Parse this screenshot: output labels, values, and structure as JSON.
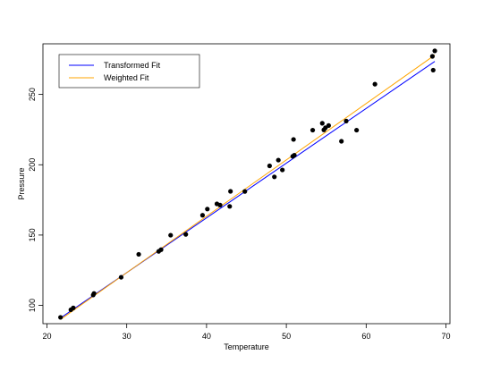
{
  "chart_data": {
    "type": "scatter",
    "title": "",
    "xlabel": "Temperature",
    "ylabel": "Pressure",
    "xlim": [
      19.5,
      70.5
    ],
    "ylim": [
      87,
      286
    ],
    "xticks": [
      20,
      30,
      40,
      50,
      60,
      70
    ],
    "yticks": [
      100,
      150,
      200,
      250
    ],
    "grid": false,
    "legend_position": "top-left",
    "points": {
      "x": [
        21.7,
        23.0,
        23.3,
        25.8,
        25.9,
        29.3,
        31.5,
        34.0,
        34.3,
        35.5,
        37.4,
        39.5,
        40.1,
        41.3,
        41.7,
        42.9,
        43.0,
        44.8,
        47.9,
        48.5,
        49.0,
        49.5,
        50.8,
        50.9,
        51.0,
        53.3,
        54.5,
        54.7,
        54.9,
        55.3,
        56.9,
        57.5,
        58.8,
        61.1,
        68.3,
        68.4,
        68.6
      ],
      "y": [
        91.5,
        96.9,
        98.2,
        107.4,
        108.5,
        120.0,
        136.3,
        138.4,
        139.6,
        149.9,
        150.5,
        164.1,
        168.5,
        172.2,
        171.3,
        170.4,
        181.1,
        181.0,
        199.2,
        191.4,
        203.3,
        196.3,
        206.0,
        218.0,
        206.8,
        224.6,
        229.5,
        224.8,
        226.3,
        227.9,
        216.7,
        231.1,
        224.6,
        257.3,
        277.1,
        267.3,
        281.0
      ]
    },
    "series": [
      {
        "name": "Transformed Fit",
        "color": "#0000ff",
        "x": [
          21.7,
          68.6
        ],
        "y": [
          91.0,
          273.5
        ]
      },
      {
        "name": "Weighted Fit",
        "color": "#ffa500",
        "x": [
          21.7,
          68.6
        ],
        "y": [
          90.0,
          278.0
        ]
      }
    ],
    "point_color": "#000000"
  }
}
